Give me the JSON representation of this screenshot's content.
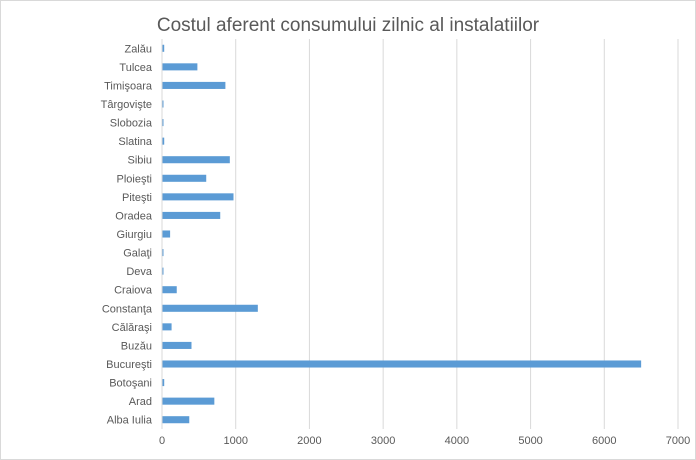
{
  "chart_data": {
    "type": "bar",
    "orientation": "horizontal",
    "title": "Costul aferent consumului zilnic al instalatiilor",
    "xlabel": "",
    "ylabel": "",
    "xlim": [
      0,
      7000
    ],
    "x_ticks": [
      0,
      1000,
      2000,
      3000,
      4000,
      5000,
      6000,
      7000
    ],
    "grid": true,
    "legend": "none",
    "bar_color": "#5b9bd5",
    "gridline_color": "#d9d9d9",
    "text_color": "#595959",
    "categories": [
      "Alba Iulia",
      "Arad",
      "Botoşani",
      "Bucureşti",
      "Buzău",
      "Călăraşi",
      "Constanţa",
      "Craiova",
      "Deva",
      "Galaţi",
      "Giurgiu",
      "Oradea",
      "Piteşti",
      "Ploieşti",
      "Sibiu",
      "Slatina",
      "Slobozia",
      "Târgovişte",
      "Timişoara",
      "Tulcea",
      "Zalău"
    ],
    "values": [
      370,
      710,
      30,
      6500,
      400,
      130,
      1300,
      200,
      20,
      20,
      110,
      790,
      970,
      600,
      920,
      30,
      20,
      20,
      860,
      480,
      30
    ]
  }
}
